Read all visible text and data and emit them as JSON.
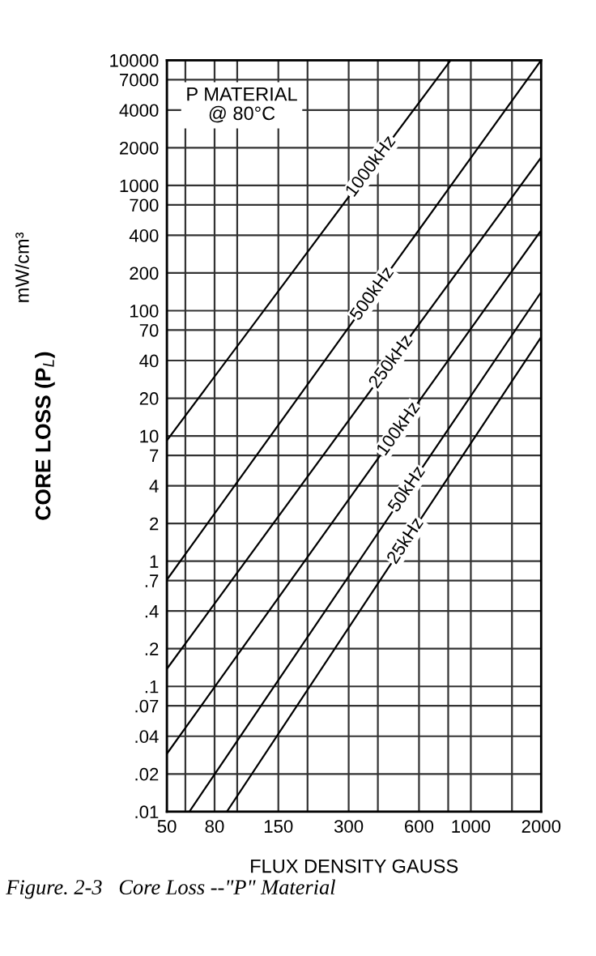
{
  "chart_data": {
    "type": "line",
    "xlabel": "FLUX DENSITY GAUSS",
    "ylabel": "CORE LOSS (P$_{L}$)",
    "annotations": [
      "P MATERIAL\n@ 80°C",
      "mW/cm³",
      "Figure. 2-3   Core Loss --\"P\" Material"
    ],
    "log": "xy",
    "xlim": [
      50,
      2000
    ],
    "xticks": [
      50,
      {
        "value": 60,
        "label": null
      },
      80,
      {
        "value": 100,
        "label": null
      },
      150,
      {
        "value": 200,
        "label": null
      },
      300,
      {
        "value": 400,
        "label": null
      },
      600,
      {
        "value": 800,
        "label": null
      },
      1000,
      {
        "value": 1500,
        "label": null
      },
      2000
    ],
    "ylim": [
      0.01,
      10000
    ],
    "yticks": [
      {
        "value": 0.01,
        "label": ".01"
      },
      {
        "value": 0.02,
        "label": ".02"
      },
      {
        "value": 0.04,
        "label": ".04"
      },
      {
        "value": 0.07,
        "label": ".07"
      },
      {
        "value": 0.1,
        "label": ".1"
      },
      {
        "value": 0.2,
        "label": ".2"
      },
      {
        "value": 0.4,
        "label": ".4"
      },
      {
        "value": 0.7,
        "label": ".7"
      },
      1,
      2,
      4,
      7,
      10,
      20,
      40,
      70,
      100,
      200,
      400,
      700,
      1000,
      2000,
      4000,
      7000,
      10000
    ],
    "grid": true,
    "legend": false,
    "line_style": "solid",
    "series": [
      {
        "name": "1000kHz",
        "color": "#000000",
        "x": [
          50,
          820
        ],
        "values": [
          9.2,
          10000
        ]
      },
      {
        "name": "500kHz",
        "color": "#000000",
        "x": [
          50,
          2000
        ],
        "values": [
          0.71,
          10000
        ]
      },
      {
        "name": "250kHz",
        "color": "#000000",
        "x": [
          50,
          2000
        ],
        "values": [
          0.138,
          1675
        ]
      },
      {
        "name": "100kHz",
        "color": "#000000",
        "x": [
          50,
          2000
        ],
        "values": [
          0.029,
          438
        ]
      },
      {
        "name": "50kHz",
        "color": "#000000",
        "x": [
          62.4,
          2000
        ],
        "values": [
          0.01,
          141
        ]
      },
      {
        "name": "25kHz",
        "color": "#000000",
        "x": [
          90.3,
          2000
        ],
        "values": [
          0.01,
          61.6
        ]
      }
    ]
  }
}
